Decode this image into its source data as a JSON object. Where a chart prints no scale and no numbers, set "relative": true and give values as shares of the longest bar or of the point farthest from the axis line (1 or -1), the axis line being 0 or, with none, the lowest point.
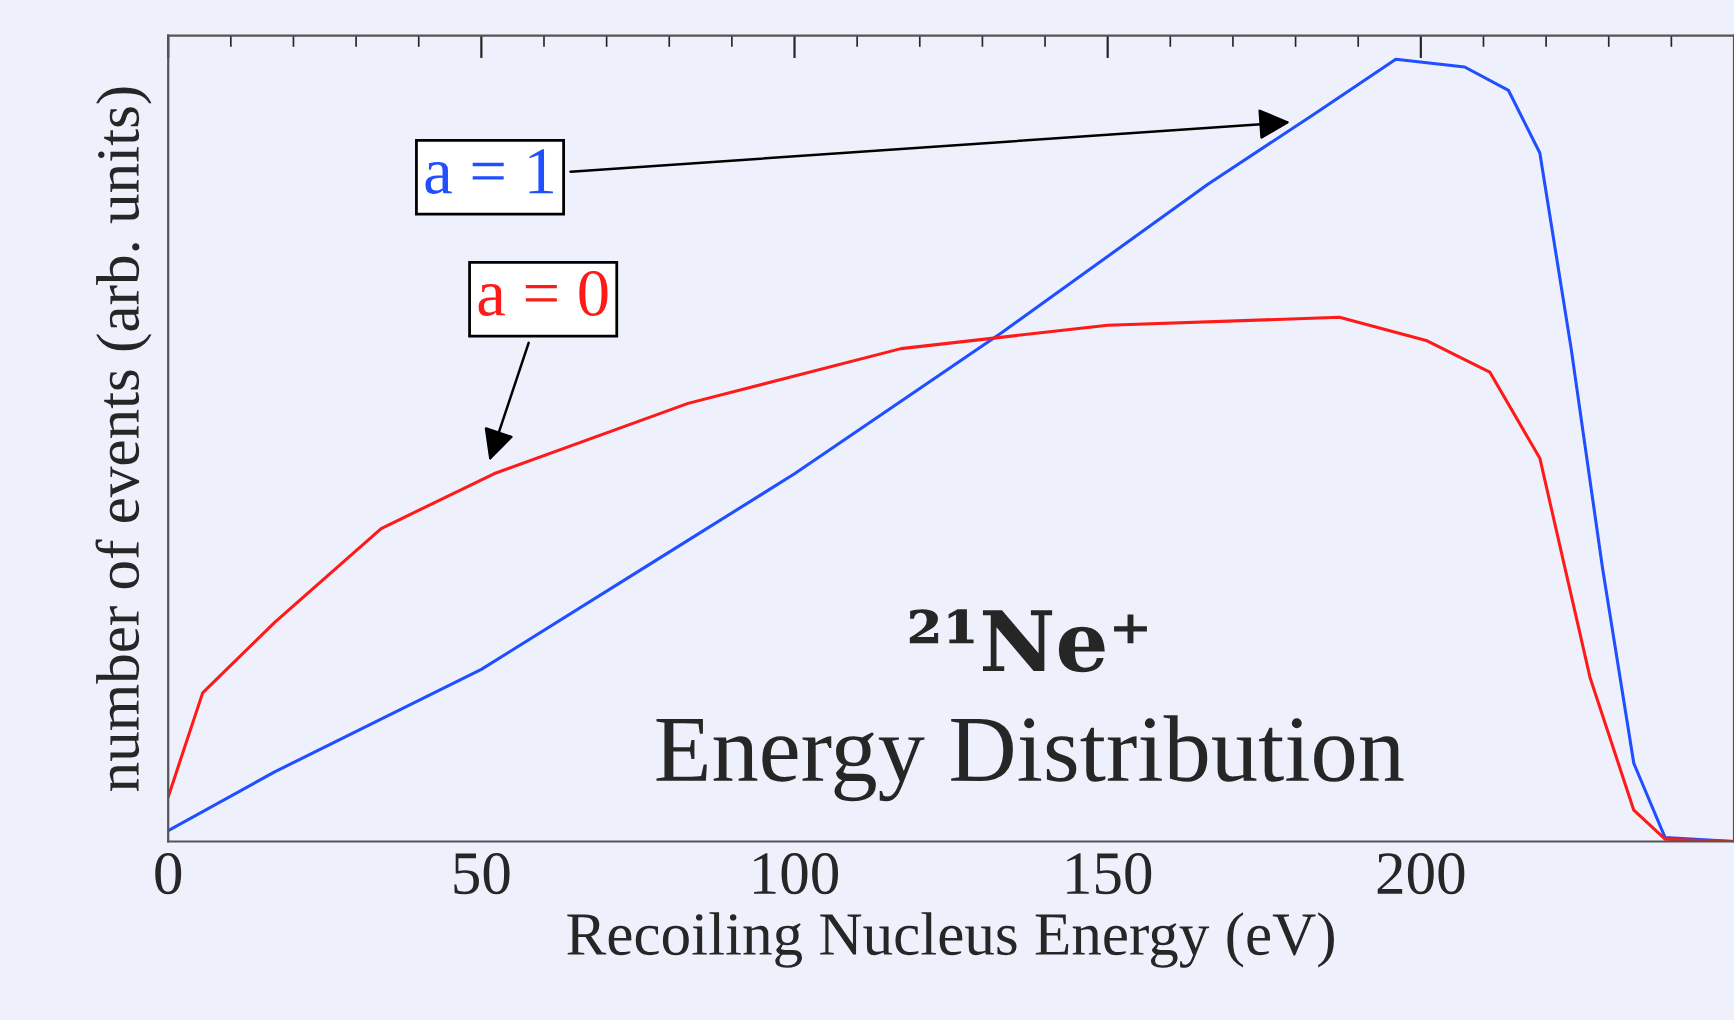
{
  "chart_data": {
    "type": "line",
    "relative": true,
    "title": "²¹Ne⁺",
    "subtitle": "Energy Distribution",
    "xlabel": "Recoiling Nucleus Energy (eV)",
    "ylabel": "number of events (arb. units)",
    "xlim": [
      0,
      250
    ],
    "xticks": [
      0,
      50,
      100,
      150,
      200
    ],
    "grid": false,
    "legend": false,
    "marker": "none",
    "line_style": "solid",
    "series": [
      {
        "color": "#1f4fff",
        "x": [
          0,
          17,
          50,
          78,
          100,
          133,
          166,
          183,
          196,
          207,
          214,
          219,
          224,
          229,
          234,
          239,
          250
        ],
        "values": [
          0.014,
          0.089,
          0.22,
          0.36,
          0.47,
          0.65,
          0.84,
          0.93,
          1.0,
          0.99,
          0.96,
          0.88,
          0.63,
          0.35,
          0.1,
          0.005,
          0.0
        ]
      },
      {
        "color": "#ff1a1a",
        "x": [
          0,
          5.5,
          17,
          34,
          52,
          83,
          117,
          150,
          187,
          201,
          211,
          219,
          227,
          234,
          239,
          250
        ],
        "values": [
          0.057,
          0.19,
          0.28,
          0.4,
          0.47,
          0.56,
          0.63,
          0.66,
          0.67,
          0.64,
          0.6,
          0.49,
          0.21,
          0.04,
          0.003,
          0.0
        ]
      }
    ],
    "annotations": [
      {
        "text": "a = 1",
        "x": 180,
        "y": 0.92
      },
      {
        "text": "a = 0",
        "x": 51,
        "y": 0.48
      }
    ]
  }
}
